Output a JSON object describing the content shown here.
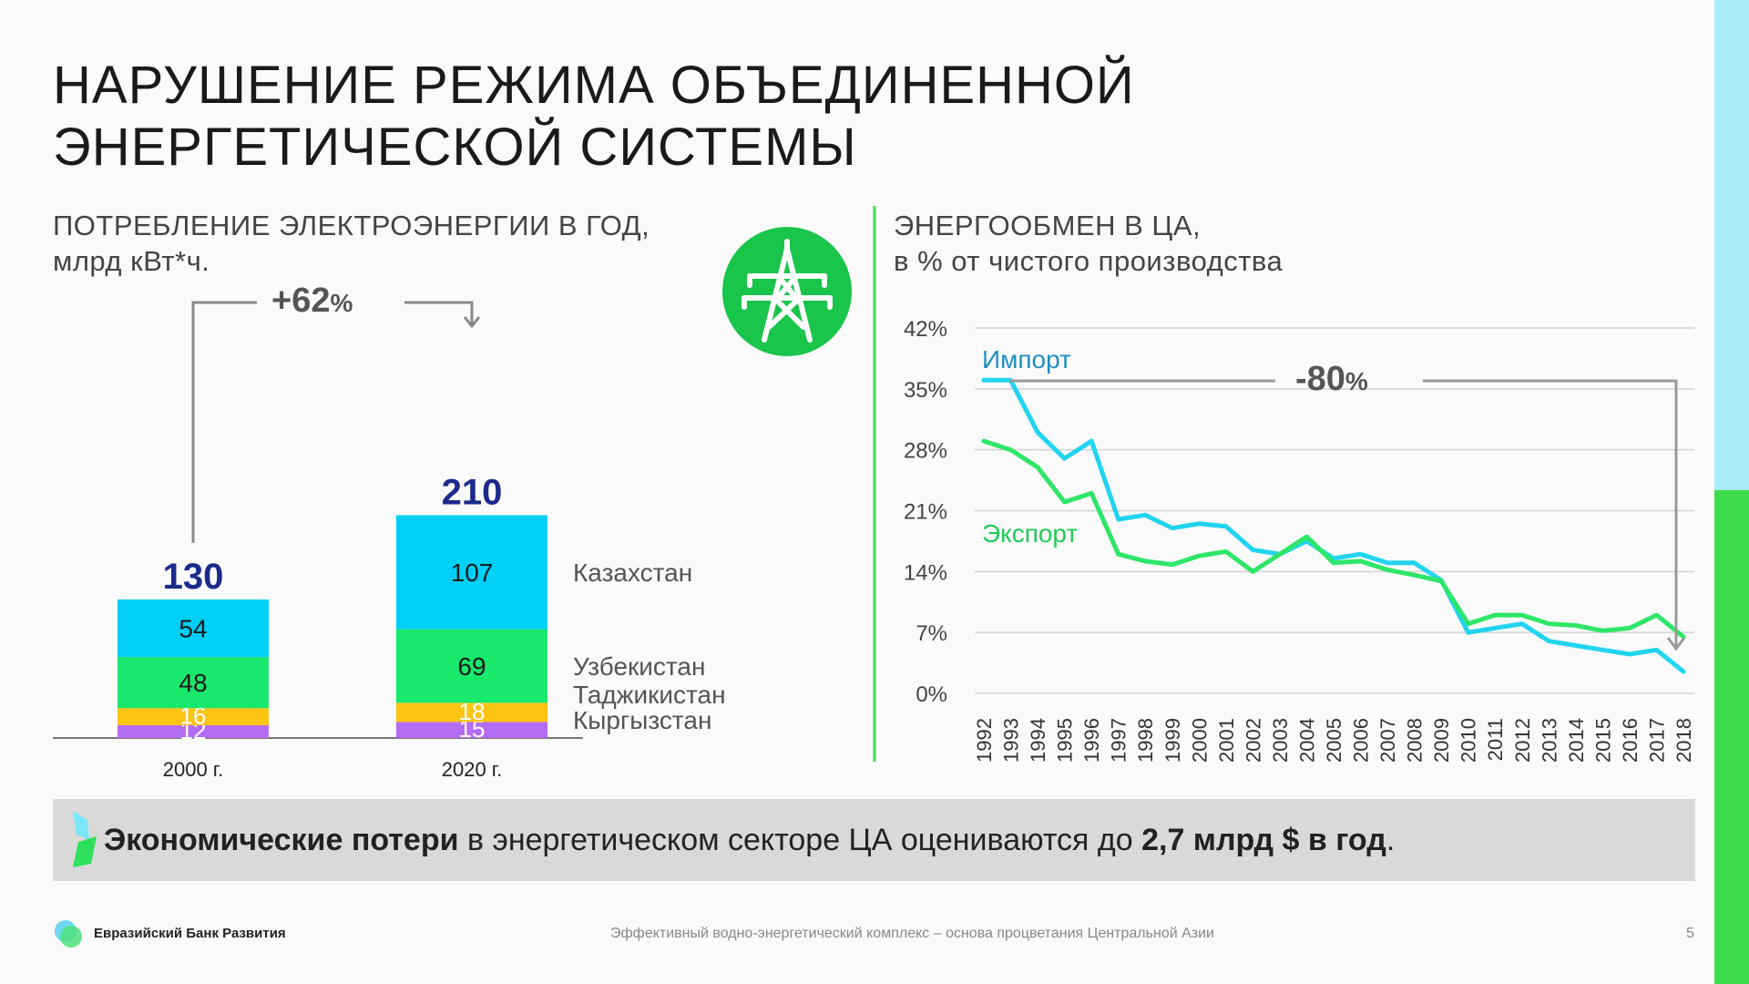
{
  "slide": {
    "title_line1": "НАРУШЕНИЕ РЕЖИМА ОБЪЕДИНЕННОЙ",
    "title_line2": "ЭНЕРГЕТИЧЕСКОЙ СИСТЕМЫ",
    "left_subtitle_line1": "ПОТРЕБЛЕНИЕ ЭЛЕКТРОЭНЕРГИИ В ГОД,",
    "left_subtitle_line2": "млрд кВт*ч.",
    "right_subtitle_line1": "ЭНЕРГООБМЕН В ЦА,",
    "right_subtitle_line2": "в % от чистого производства",
    "growth_label": "+62",
    "decline_label": "-80",
    "percent_sign": "%",
    "tower_icon": "power-tower-icon",
    "band_bold1": "Экономические потери",
    "band_text": " в энергетическом секторе ЦА оцениваются до ",
    "band_bold2": "2,7 млрд $ в год",
    "band_end": ".",
    "logo_text": "Евразийский Банк Развития",
    "footer_text": "Эффективный водно-энергетический комплекс – основа процветания Центральной Азии",
    "page_number": "5"
  },
  "colors": {
    "kazakhstan": "#00d0f8",
    "uzbekistan": "#18e86c",
    "tajikistan": "#fcc414",
    "kyrgyzstan": "#b46cf4",
    "total_label": "#1c2a8c",
    "import": "#22d4ef",
    "export": "#2ee668",
    "tower_circle": "#19c54a"
  },
  "chart_data": [
    {
      "type": "bar",
      "stacked": true,
      "categories": [
        "2000 г.",
        "2020 г."
      ],
      "totals": [
        130,
        210
      ],
      "series": [
        {
          "name": "Кыргызстан",
          "values": [
            12,
            15
          ]
        },
        {
          "name": "Таджикистан",
          "values": [
            16,
            18
          ]
        },
        {
          "name": "Узбекистан",
          "values": [
            48,
            69
          ]
        },
        {
          "name": "Казахстан",
          "values": [
            54,
            107
          ]
        }
      ],
      "title": "ПОТРЕБЛЕНИЕ ЭЛЕКТРОЭНЕРГИИ В ГОД, млрд кВт*ч.",
      "annotation": "+62%"
    },
    {
      "type": "line",
      "x": [
        1992,
        1993,
        1994,
        1995,
        1996,
        1997,
        1998,
        1999,
        2000,
        2001,
        2002,
        2003,
        2004,
        2005,
        2006,
        2007,
        2008,
        2009,
        2010,
        2011,
        2012,
        2013,
        2014,
        2015,
        2016,
        2017,
        2018
      ],
      "series": [
        {
          "name": "Импорт",
          "values": [
            36,
            36,
            30,
            27,
            29,
            20,
            20.5,
            19,
            19.5,
            19.2,
            16.5,
            16,
            17.5,
            15.5,
            16,
            15,
            15,
            13,
            7,
            7.5,
            8,
            6,
            5.5,
            5,
            4.5,
            5,
            2.5
          ]
        },
        {
          "name": "Экспорт",
          "values": [
            29,
            28,
            26,
            22,
            23,
            16,
            15.2,
            14.8,
            15.8,
            16.3,
            14,
            16,
            18,
            15,
            15.2,
            14.2,
            13.6,
            12.9,
            8,
            9,
            9,
            8,
            7.8,
            7.2,
            7.5,
            9,
            6.5
          ]
        }
      ],
      "title": "ЭНЕРГООБМЕН В ЦА, в % от чистого производства",
      "ylim": [
        0,
        42
      ],
      "yticks": [
        "0%",
        "7%",
        "14%",
        "21%",
        "28%",
        "35%",
        "42%"
      ],
      "grid": true,
      "annotation": "-80%"
    }
  ]
}
